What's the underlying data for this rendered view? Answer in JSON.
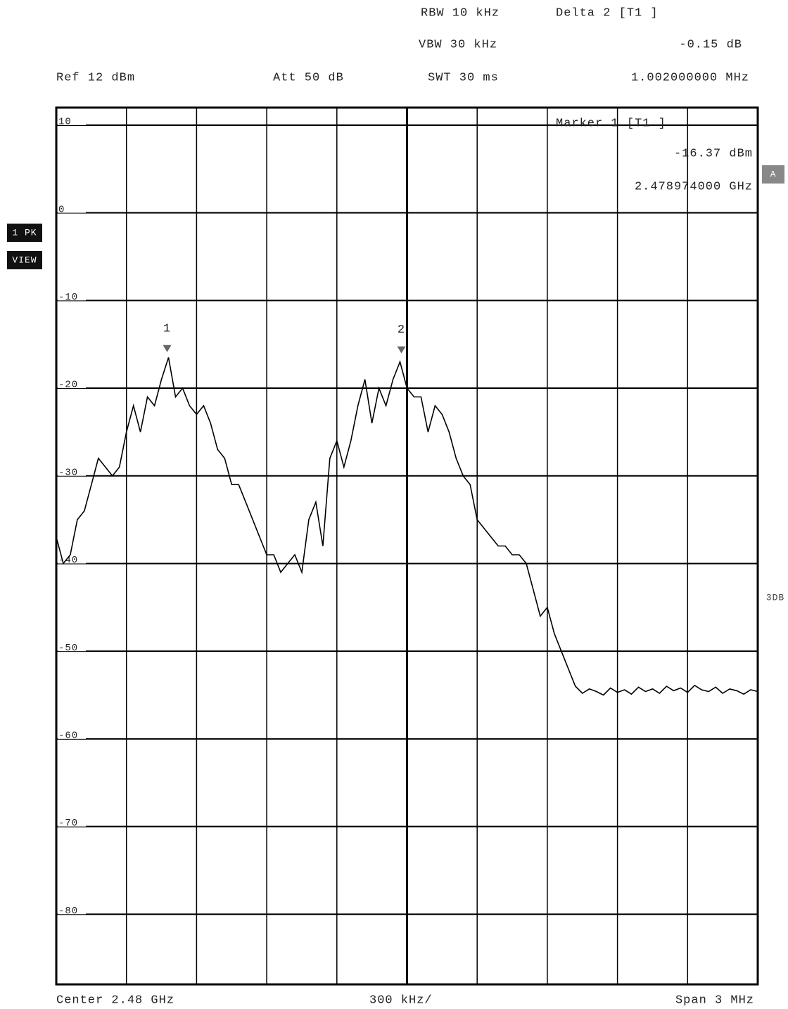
{
  "chart_data": {
    "type": "line",
    "annotations": [
      "RBW 10 kHz",
      "VBW 30 kHz",
      "SWT 30 ms",
      "Ref 12 dBm",
      "Att 50 dB",
      "Delta 2 [T1 ]",
      "-0.15 dB",
      "1.002000000 MHz",
      "Marker 1 [T1 ]",
      "-16.37 dBm",
      "2.478974000 GHz",
      "Center 2.48 GHz",
      "300 kHz/",
      "Span 3 MHz"
    ],
    "side_labels": [
      "1 PK",
      "VIEW",
      "A",
      "3DB"
    ],
    "x": [
      2478.5,
      2478.53,
      2478.56,
      2478.59,
      2478.62,
      2478.65,
      2478.68,
      2478.71,
      2478.74,
      2478.77,
      2478.8,
      2478.83,
      2478.86,
      2478.89,
      2478.92,
      2478.95,
      2478.98,
      2479.01,
      2479.04,
      2479.07,
      2479.1,
      2479.13,
      2479.16,
      2479.19,
      2479.22,
      2479.25,
      2479.28,
      2479.31,
      2479.34,
      2479.37,
      2479.4,
      2479.43,
      2479.46,
      2479.49,
      2479.52,
      2479.55,
      2479.58,
      2479.61,
      2479.64,
      2479.67,
      2479.7,
      2479.73,
      2479.76,
      2479.79,
      2479.82,
      2479.85,
      2479.88,
      2479.91,
      2479.94,
      2479.97,
      2480.0,
      2480.03,
      2480.06,
      2480.09,
      2480.12,
      2480.15,
      2480.18,
      2480.21,
      2480.24,
      2480.27,
      2480.3,
      2480.33,
      2480.36,
      2480.39,
      2480.42,
      2480.45,
      2480.48,
      2480.51,
      2480.54,
      2480.57,
      2480.6,
      2480.63,
      2480.66,
      2480.69,
      2480.72,
      2480.75,
      2480.78,
      2480.81,
      2480.84,
      2480.87,
      2480.9,
      2480.93,
      2480.96,
      2480.99,
      2481.02,
      2481.05,
      2481.08,
      2481.11,
      2481.14,
      2481.17,
      2481.2,
      2481.23,
      2481.26,
      2481.29,
      2481.32,
      2481.35,
      2481.38,
      2481.41,
      2481.44,
      2481.47,
      2481.5
    ],
    "series": [
      {
        "color": "#000000",
        "values": [
          -37,
          -40,
          -39,
          -35,
          -34,
          -31,
          -28,
          -29,
          -30,
          -29,
          -25,
          -22,
          -25,
          -21,
          -22,
          -19,
          -16.5,
          -21,
          -20,
          -22,
          -23,
          -22,
          -24,
          -27,
          -28,
          -31,
          -31,
          -33,
          -35,
          -37,
          -39,
          -39,
          -41,
          -40,
          -39,
          -41,
          -35,
          -33,
          -38,
          -28,
          -26,
          -29,
          -26,
          -22,
          -19,
          -24,
          -20,
          -22,
          -19,
          -17,
          -20,
          -21,
          -21,
          -25,
          -22,
          -23,
          -25,
          -28,
          -30,
          -31,
          -35,
          -36,
          -37,
          -38,
          -38,
          -39,
          -39,
          -40,
          -43,
          -46,
          -45,
          -48,
          -50,
          -52,
          -54,
          -54.8,
          -54.3,
          -54.6,
          -55,
          -54.2,
          -54.7,
          -54.4,
          -54.9,
          -54.1,
          -54.6,
          -54.3,
          -54.8,
          -54.0,
          -54.5,
          -54.2,
          -54.7,
          -53.9,
          -54.4,
          -54.6,
          -54.1,
          -54.8,
          -54.3,
          -54.5,
          -54.9,
          -54.4,
          -54.6
        ]
      }
    ],
    "markers": [
      {
        "label": "1",
        "x": 2478.974,
        "y": -16.37
      },
      {
        "label": "2",
        "x": 2479.976,
        "y": -16.52
      }
    ],
    "xlim": [
      2478.5,
      2481.5
    ],
    "xticks": [
      2478.8,
      2479.1,
      2479.4,
      2479.7,
      2480.0,
      2480.3,
      2480.6,
      2480.9,
      2481.2
    ],
    "ylim": [
      -88,
      12
    ],
    "yticks": [
      10,
      0,
      -10,
      -20,
      -30,
      -40,
      -50,
      -60,
      -70,
      -80
    ],
    "grid": true
  }
}
